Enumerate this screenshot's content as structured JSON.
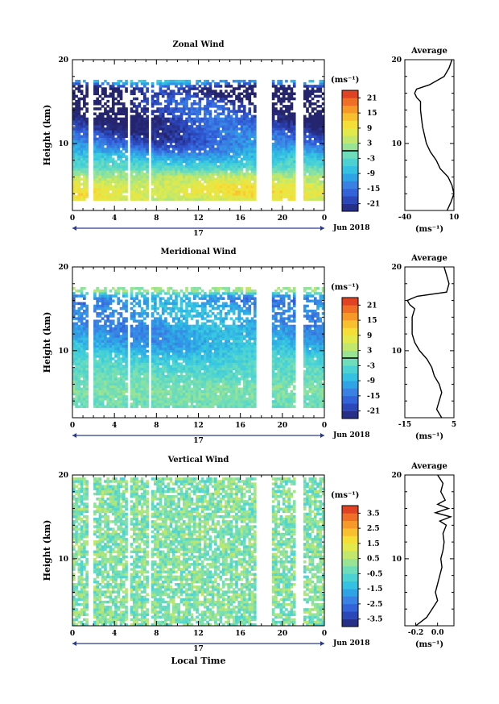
{
  "chart_data": [
    {
      "type": "heatmap",
      "title": "Zonal Wind",
      "ylabel": "Height (km)",
      "xlim": [
        0,
        24
      ],
      "ylim": [
        2,
        20
      ],
      "x_ticks": [
        "0",
        "4",
        "8",
        "12",
        "16",
        "20",
        "0"
      ],
      "y_ticks": [
        "20",
        "10"
      ],
      "day_label": "17",
      "month_label": "Jun 2018",
      "colorbar": {
        "unit": "(ms⁻¹)",
        "range": [
          -24,
          24
        ],
        "ticks": [
          "21",
          "15",
          "9",
          "3",
          "-3",
          "-9",
          "-15",
          "-21"
        ],
        "zero_contour": true
      },
      "data_gaps_local_time": [
        [
          1.6,
          2.0
        ],
        [
          5.3,
          5.6
        ],
        [
          7.3,
          7.6
        ],
        [
          17.6,
          18.9
        ],
        [
          21.3,
          22.0
        ]
      ],
      "valid_height_km": [
        3,
        17.5
      ],
      "average_profile": {
        "title": "Average",
        "xlabel": "(ms⁻¹)",
        "xlim": [
          -40,
          10
        ],
        "x_ticks": [
          "-40",
          "10"
        ],
        "y_ticks": [
          "20",
          "10"
        ],
        "height_km": [
          2,
          3,
          4,
          5,
          6,
          7,
          8,
          9,
          10,
          11,
          12,
          13,
          14,
          15,
          15.5,
          16,
          16.5,
          17,
          18,
          19,
          20
        ],
        "value": [
          3,
          7,
          10,
          8,
          4,
          -4,
          -8,
          -14,
          -18,
          -20,
          -22,
          -23,
          -24,
          -24,
          -28,
          -30,
          -28,
          -15,
          0,
          5,
          8
        ]
      }
    },
    {
      "type": "heatmap",
      "title": "Meridional Wind",
      "ylabel": "Height (km)",
      "xlim": [
        0,
        24
      ],
      "ylim": [
        2,
        20
      ],
      "x_ticks": [
        "0",
        "4",
        "8",
        "12",
        "16",
        "20",
        "0"
      ],
      "y_ticks": [
        "20",
        "10"
      ],
      "day_label": "17",
      "month_label": "Jun 2018",
      "colorbar": {
        "unit": "(ms⁻¹)",
        "range": [
          -24,
          24
        ],
        "ticks": [
          "21",
          "15",
          "9",
          "3",
          "-3",
          "-9",
          "-15",
          "-21"
        ],
        "zero_contour": true
      },
      "data_gaps_local_time": [
        [
          1.6,
          2.0
        ],
        [
          5.3,
          5.6
        ],
        [
          7.3,
          7.6
        ],
        [
          17.6,
          18.9
        ],
        [
          21.3,
          22.0
        ]
      ],
      "valid_height_km": [
        3,
        17.5
      ],
      "average_profile": {
        "title": "Average",
        "xlabel": "(ms⁻¹)",
        "xlim": [
          -15,
          5
        ],
        "x_ticks": [
          "-15",
          "5"
        ],
        "y_ticks": [
          "20",
          "10"
        ],
        "height_km": [
          2,
          3,
          4,
          5,
          6,
          7,
          8,
          9,
          10,
          11,
          12,
          13,
          14,
          15,
          15.5,
          16,
          16.5,
          17,
          18,
          19,
          20
        ],
        "value": [
          0,
          -2,
          -1,
          0,
          -1,
          -3,
          -4,
          -6,
          -9,
          -11,
          -12,
          -12,
          -12,
          -11,
          -13,
          -14,
          -10,
          2,
          3,
          2,
          1
        ]
      }
    },
    {
      "type": "heatmap",
      "title": "Vertical Wind",
      "ylabel": "Height (km)",
      "xlabel": "Local Time",
      "xlim": [
        0,
        24
      ],
      "ylim": [
        2,
        20
      ],
      "x_ticks": [
        "0",
        "4",
        "8",
        "12",
        "16",
        "20",
        "0"
      ],
      "y_ticks": [
        "20",
        "10"
      ],
      "day_label": "17",
      "month_label": "Jun 2018",
      "colorbar": {
        "unit": "(ms⁻¹)",
        "range": [
          -4,
          4
        ],
        "ticks": [
          "3.5",
          "2.5",
          "1.5",
          "0.5",
          "-0.5",
          "-1.5",
          "-2.5",
          "-3.5"
        ],
        "zero_contour": false
      },
      "data_gaps_local_time": [
        [
          1.6,
          2.0
        ],
        [
          5.3,
          5.6
        ],
        [
          7.3,
          7.6
        ],
        [
          17.6,
          18.9
        ],
        [
          21.3,
          22.0
        ]
      ],
      "valid_height_km": [
        2,
        19.5
      ],
      "average_profile": {
        "title": "Average",
        "xlabel": "(ms⁻¹)",
        "xlim": [
          -0.3,
          0.15
        ],
        "x_ticks": [
          "-0.2",
          "0.0"
        ],
        "y_ticks": [
          "20",
          "10"
        ],
        "height_km": [
          2,
          3,
          4,
          5,
          6,
          7,
          8,
          9,
          10,
          11,
          12,
          13,
          14,
          14.5,
          15,
          15.5,
          16,
          16.5,
          17,
          18,
          19,
          20
        ],
        "value": [
          -0.2,
          -0.1,
          -0.05,
          0.0,
          -0.02,
          0.0,
          0.02,
          0.04,
          0.03,
          0.05,
          0.06,
          0.05,
          0.08,
          0.02,
          0.12,
          -0.02,
          0.1,
          0.0,
          0.07,
          0.03,
          0.05,
          0.0
        ]
      }
    }
  ]
}
